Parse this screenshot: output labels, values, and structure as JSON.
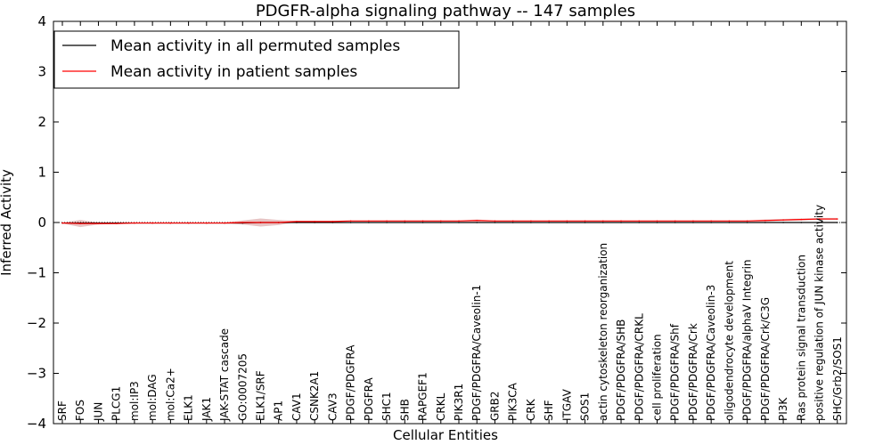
{
  "chart_data": {
    "type": "line",
    "title": "PDGFR-alpha signaling pathway -- 147 samples",
    "xlabel": "Cellular Entities",
    "ylabel": "Inferred Activity",
    "ylim": [
      -4,
      4
    ],
    "yticks": [
      "4",
      "3",
      "2",
      "1",
      "0",
      "−1",
      "−2",
      "−3",
      "−4"
    ],
    "ytick_values": [
      4,
      3,
      2,
      1,
      0,
      -1,
      -2,
      -3,
      -4
    ],
    "grid": false,
    "legend_position": "top-left",
    "categories": [
      "SRF",
      "FOS",
      "JUN",
      "PLCG1",
      "mol:IP3",
      "mol:DAG",
      "mol:Ca2+",
      "ELK1",
      "JAK1",
      "JAK-STAT cascade",
      "GO:0007205",
      "ELK1/SRF",
      "AP1",
      "CAV1",
      "CSNK2A1",
      "CAV3",
      "PDGF/PDGFRA",
      "PDGFRA",
      "SHC1",
      "SHB",
      "RAPGEF1",
      "CRKL",
      "PIK3R1",
      "PDGF/PDGFRA/Caveolin-1",
      "GRB2",
      "PIK3CA",
      "CRK",
      "SHF",
      "ITGAV",
      "SOS1",
      "actin cytoskeleton reorganization",
      "PDGF/PDGFRA/SHB",
      "PDGF/PDGFRA/CRKL",
      "cell proliferation",
      "PDGF/PDGFRA/Shf",
      "PDGF/PDGFRA/Crk",
      "PDGF/PDGFRA/Caveolin-3",
      "oligodendrocyte development",
      "PDGF/PDGFRA/alphaV Integrin",
      "PDGF/PDGFRA/Crk/C3G",
      "PI3K",
      "Ras protein signal transduction",
      "positive regulation of JUN kinase activity",
      "SHC/Grb2/SOS1"
    ],
    "series": [
      {
        "name": "Mean activity in all permuted samples",
        "color": "#000000",
        "values": [
          -0.01,
          -0.01,
          -0.01,
          -0.01,
          -0.01,
          -0.01,
          -0.01,
          -0.01,
          -0.01,
          -0.01,
          -0.01,
          0.0,
          0.0,
          0.0,
          0.0,
          0.0,
          0.0,
          0.0,
          0.0,
          0.0,
          0.0,
          0.0,
          0.0,
          0.0,
          0.0,
          0.0,
          0.0,
          0.0,
          0.0,
          0.0,
          0.0,
          0.0,
          0.0,
          0.0,
          0.0,
          0.0,
          0.0,
          0.0,
          0.0,
          0.0,
          0.0,
          0.0,
          0.0,
          0.0
        ]
      },
      {
        "name": "Mean activity in patient samples",
        "color": "#ff0000",
        "band_color": "#c87a7a",
        "values": [
          -0.01,
          -0.02,
          -0.02,
          -0.02,
          -0.01,
          -0.01,
          -0.01,
          -0.01,
          -0.01,
          -0.01,
          0.0,
          0.0,
          0.0,
          0.02,
          0.02,
          0.02,
          0.03,
          0.03,
          0.03,
          0.03,
          0.03,
          0.03,
          0.03,
          0.04,
          0.03,
          0.03,
          0.03,
          0.03,
          0.03,
          0.03,
          0.03,
          0.03,
          0.03,
          0.03,
          0.03,
          0.03,
          0.03,
          0.03,
          0.03,
          0.04,
          0.05,
          0.06,
          0.07,
          0.07
        ],
        "band": [
          0.01,
          0.07,
          0.02,
          0.01,
          0.01,
          0.01,
          0.01,
          0.01,
          0.01,
          0.01,
          0.04,
          0.08,
          0.05,
          0.01,
          0.01,
          0.01,
          0.01,
          0.01,
          0.01,
          0.01,
          0.01,
          0.01,
          0.01,
          0.02,
          0.01,
          0.01,
          0.01,
          0.01,
          0.01,
          0.01,
          0.01,
          0.01,
          0.01,
          0.01,
          0.01,
          0.01,
          0.01,
          0.01,
          0.01,
          0.02,
          0.02,
          0.02,
          0.02,
          0.02
        ]
      }
    ]
  }
}
